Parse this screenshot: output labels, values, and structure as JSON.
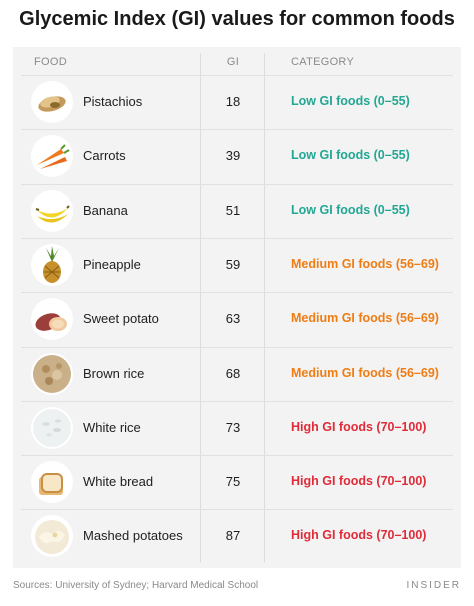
{
  "title": "Glycemic Index (GI) values for common foods",
  "columns": {
    "food": "FOOD",
    "gi": "GI",
    "category": "CATEGORY"
  },
  "source": "Sources:  University of Sydney; Harvard Medical School",
  "brand": "INSIDER",
  "colors": {
    "low": "#22a793",
    "medium": "#ef7d14",
    "high": "#e02b38"
  },
  "chart_data": {
    "type": "table",
    "title": "Glycemic Index (GI) values for common foods",
    "headers": [
      "FOOD",
      "GI",
      "CATEGORY"
    ],
    "rows": [
      {
        "food": "Pistachios",
        "gi": 18,
        "category": "Low GI foods (0–55)",
        "level": "low",
        "icon": "pistachios-icon"
      },
      {
        "food": "Carrots",
        "gi": 39,
        "category": "Low GI foods (0–55)",
        "level": "low",
        "icon": "carrots-icon"
      },
      {
        "food": "Banana",
        "gi": 51,
        "category": "Low GI foods (0–55)",
        "level": "low",
        "icon": "banana-icon"
      },
      {
        "food": "Pineapple",
        "gi": 59,
        "category": "Medium GI foods (56–69)",
        "level": "med",
        "icon": "pineapple-icon"
      },
      {
        "food": "Sweet potato",
        "gi": 63,
        "category": "Medium GI foods (56–69)",
        "level": "med",
        "icon": "sweet-potato-icon"
      },
      {
        "food": "Brown rice",
        "gi": 68,
        "category": "Medium GI foods (56–69)",
        "level": "med",
        "icon": "brown-rice-icon"
      },
      {
        "food": "White rice",
        "gi": 73,
        "category": "High GI foods (70–100)",
        "level": "high",
        "icon": "white-rice-icon"
      },
      {
        "food": "White bread",
        "gi": 75,
        "category": "High GI foods (70–100)",
        "level": "high",
        "icon": "white-bread-icon"
      },
      {
        "food": "Mashed potatoes",
        "gi": 87,
        "category": "High GI foods (70–100)",
        "level": "high",
        "icon": "mashed-potatoes-icon"
      }
    ]
  }
}
